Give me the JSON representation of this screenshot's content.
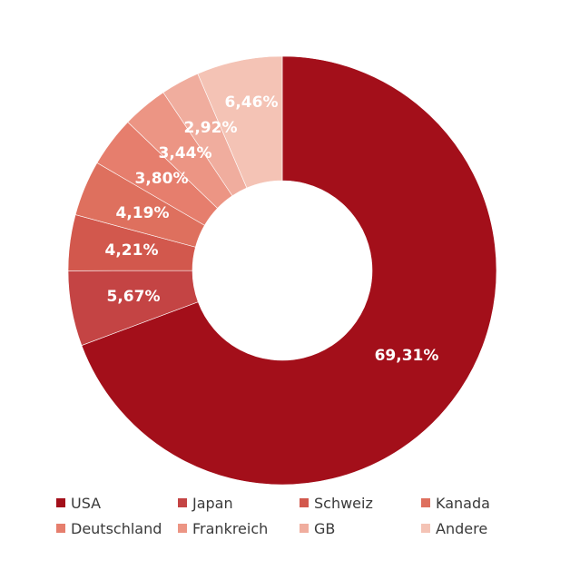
{
  "chart_data": {
    "type": "pie",
    "donut": true,
    "categories": [
      "USA",
      "Japan",
      "Schweiz",
      "Kanada",
      "Deutschland",
      "Frankreich",
      "GB",
      "Andere"
    ],
    "values": [
      69.31,
      5.67,
      4.21,
      4.19,
      3.8,
      3.44,
      2.92,
      6.46
    ],
    "labels": [
      "69,31%",
      "5,67%",
      "4,21%",
      "4,19%",
      "3,80%",
      "3,44%",
      "2,92%",
      "6,46%"
    ],
    "colors": [
      "#a30f1a",
      "#c44444",
      "#d2584d",
      "#de705e",
      "#e67e6d",
      "#ec9584",
      "#f0ad9e",
      "#f4c3b5"
    ],
    "start": "top",
    "direction": "clockwise",
    "legend_position": "bottom"
  }
}
